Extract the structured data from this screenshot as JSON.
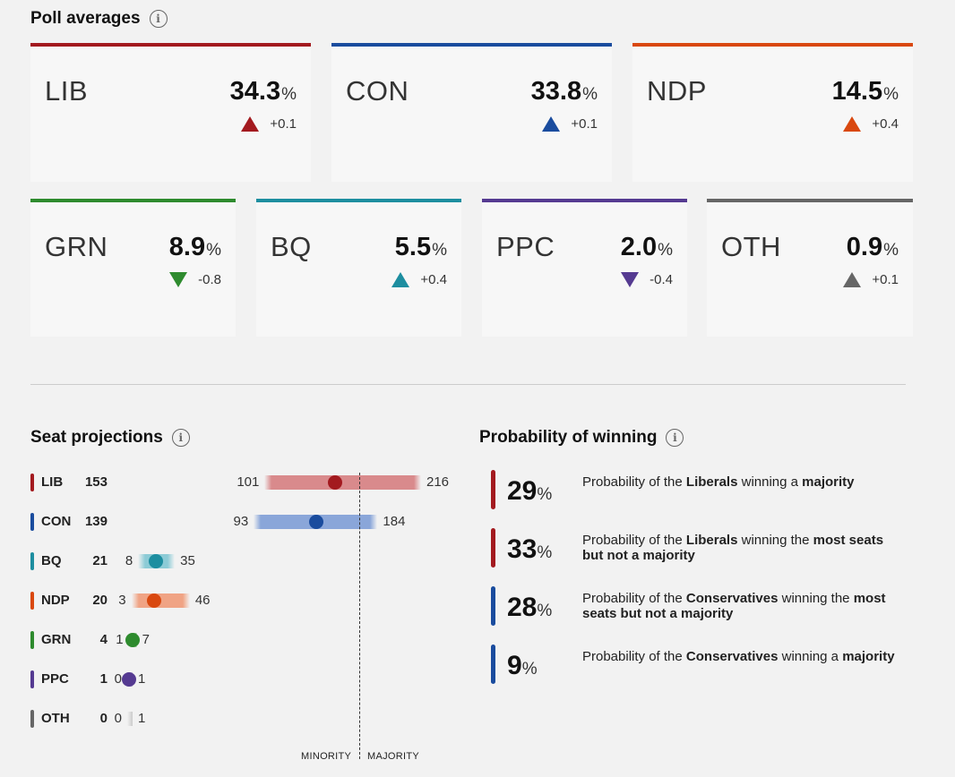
{
  "poll": {
    "title": "Poll averages",
    "cards": [
      {
        "party": "LIB",
        "value": "34.3",
        "pct": "%",
        "delta": "+0.1",
        "dir": "up",
        "color": "#a31a1f"
      },
      {
        "party": "CON",
        "value": "33.8",
        "pct": "%",
        "delta": "+0.1",
        "dir": "up",
        "color": "#1a4c9e"
      },
      {
        "party": "NDP",
        "value": "14.5",
        "pct": "%",
        "delta": "+0.4",
        "dir": "up",
        "color": "#d9480f"
      },
      {
        "party": "GRN",
        "value": "8.9",
        "pct": "%",
        "delta": "-0.8",
        "dir": "down",
        "color": "#2e8b2e"
      },
      {
        "party": "BQ",
        "value": "5.5",
        "pct": "%",
        "delta": "+0.4",
        "dir": "up",
        "color": "#1d8ea0"
      },
      {
        "party": "PPC",
        "value": "2.0",
        "pct": "%",
        "delta": "-0.4",
        "dir": "down",
        "color": "#553a91"
      },
      {
        "party": "OTH",
        "value": "0.9",
        "pct": "%",
        "delta": "+0.1",
        "dir": "up",
        "color": "#666666"
      }
    ]
  },
  "seats": {
    "title": "Seat projections",
    "scale_max": 216,
    "rows": [
      {
        "party": "LIB",
        "count": "153",
        "low": "101",
        "high": "216",
        "mid": 153,
        "color": "#a31a1f",
        "range_color": "#d98a8c"
      },
      {
        "party": "CON",
        "count": "139",
        "low": "93",
        "high": "184",
        "mid": 139,
        "color": "#1a4c9e",
        "range_color": "#8aa6d9"
      },
      {
        "party": "BQ",
        "count": "21",
        "low": "8",
        "high": "35",
        "mid": 21,
        "color": "#1d8ea0",
        "range_color": "#8ccbd6"
      },
      {
        "party": "NDP",
        "count": "20",
        "low": "3",
        "high": "46",
        "mid": 20,
        "color": "#d9480f",
        "range_color": "#f0a384"
      },
      {
        "party": "GRN",
        "count": "4",
        "low": "1",
        "high": "7",
        "mid": 4,
        "color": "#2e8b2e",
        "range_color": "#94c994"
      },
      {
        "party": "PPC",
        "count": "1",
        "low": "0",
        "high": "1",
        "mid": 1,
        "color": "#553a91",
        "range_color": "#b3a3d6"
      },
      {
        "party": "OTH",
        "count": "0",
        "low": "0",
        "high": "1",
        "mid": 0,
        "color": "#666666",
        "range_color": "#bdbdbd"
      }
    ],
    "minority_label": "MINORITY",
    "majority_label": "MAJORITY"
  },
  "probability": {
    "title": "Probability of winning",
    "rows": [
      {
        "value": "29",
        "pct": "%",
        "color": "#a31a1f",
        "t1": "Probability of the ",
        "b1": "Liberals",
        "t2": " winning a ",
        "b2": "majority",
        "t3": ""
      },
      {
        "value": "33",
        "pct": "%",
        "color": "#a31a1f",
        "t1": "Probability of the ",
        "b1": "Liberals",
        "t2": " winning the ",
        "b2": "most seats but not a majority",
        "t3": ""
      },
      {
        "value": "28",
        "pct": "%",
        "color": "#1a4c9e",
        "t1": "Probability of the ",
        "b1": "Conservatives",
        "t2": " winning the ",
        "b2": "most seats but not a majority",
        "t3": ""
      },
      {
        "value": "9",
        "pct": "%",
        "color": "#1a4c9e",
        "t1": "Probability of the ",
        "b1": "Conservatives",
        "t2": " winning a ",
        "b2": "majority",
        "t3": ""
      }
    ]
  }
}
